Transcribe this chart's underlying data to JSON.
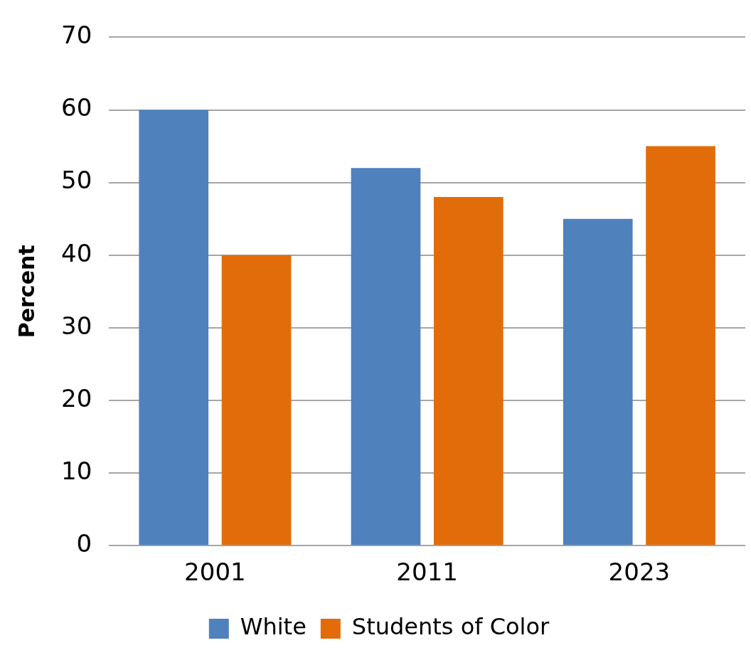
{
  "chart_data": {
    "type": "bar",
    "ylabel": "Percent",
    "categories": [
      "2001",
      "2011",
      "2023"
    ],
    "series": [
      {
        "name": "White",
        "color": "#4f81bd",
        "values": [
          60,
          52,
          45
        ]
      },
      {
        "name": "Students of Color",
        "color": "#e36c0a",
        "values": [
          40,
          48,
          55
        ]
      }
    ],
    "ylim": [
      0,
      70
    ],
    "yticks": [
      0,
      10,
      20,
      30,
      40,
      50,
      60,
      70
    ],
    "grid": "y",
    "legend": "bottom"
  }
}
